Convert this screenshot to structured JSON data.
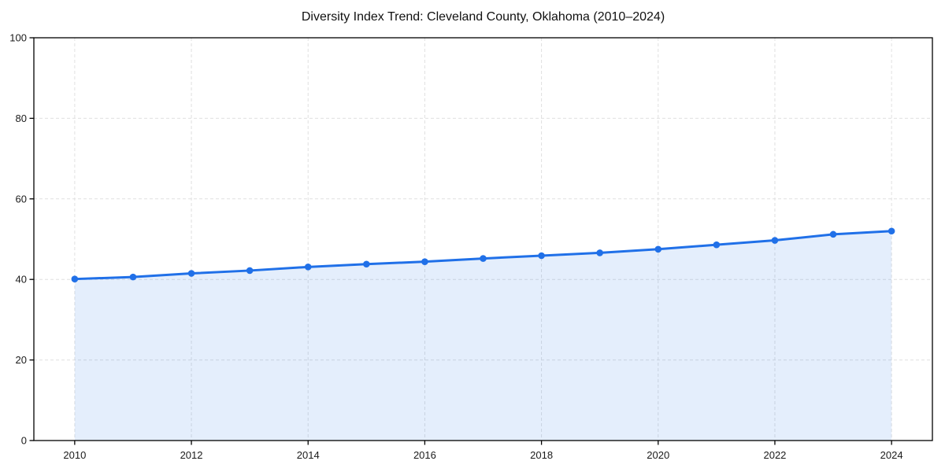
{
  "chart_data": {
    "type": "line",
    "title": "Diversity Index Trend: Cleveland County, Oklahoma (2010–2024)",
    "x": [
      2010,
      2011,
      2012,
      2013,
      2014,
      2015,
      2016,
      2017,
      2018,
      2019,
      2020,
      2021,
      2022,
      2023,
      2024
    ],
    "series": [
      {
        "name": "Diversity Index",
        "values": [
          40.1,
          40.6,
          41.5,
          42.2,
          43.1,
          43.8,
          44.4,
          45.2,
          45.9,
          46.6,
          47.5,
          48.6,
          49.7,
          51.2,
          52.0
        ]
      }
    ],
    "xlabel": "",
    "ylabel": "",
    "xlim": [
      2009.3,
      2024.7
    ],
    "ylim": [
      0,
      100
    ],
    "xticks": [
      2010,
      2012,
      2014,
      2016,
      2018,
      2020,
      2022,
      2024
    ],
    "yticks": [
      0,
      20,
      40,
      60,
      80,
      100
    ],
    "grid": {
      "visible": true,
      "style": "dashed",
      "color": "#e0e0e0"
    },
    "legend_position": "none",
    "area_fill": true,
    "marker": {
      "shape": "circle",
      "radius": 4.3
    },
    "line_width": 3,
    "colors": {
      "line": "#2070e8",
      "fill": "#2070e8",
      "fill_opacity": 0.12,
      "spine": "#000000",
      "tick_label": "#1a1a1a",
      "title": "#111111",
      "background": "#ffffff"
    }
  }
}
